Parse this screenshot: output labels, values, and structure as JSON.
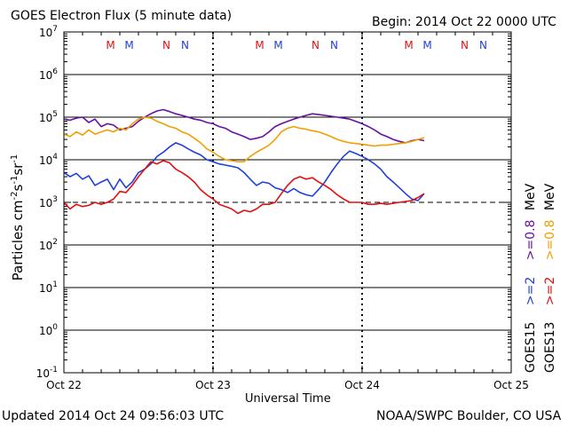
{
  "header": {
    "title": "GOES Electron Flux (5 minute data)",
    "begin": "Begin: 2014 Oct 22 0000 UTC"
  },
  "footer": {
    "updated": "Updated 2014 Oct 24 09:56:03 UTC",
    "credit": "NOAA/SWPC Boulder, CO USA"
  },
  "colors": {
    "goes15_2mev": "#1f3fdc",
    "goes13_2mev": "#e01010",
    "goes15_08mev": "#6a10a0",
    "goes13_08mev": "#f0a000",
    "marker_m": "#e01010",
    "marker_n": "#1f3fdc"
  },
  "chart_data": {
    "type": "line",
    "title": "GOES Electron Flux (5 minute data)",
    "xlabel": "Universal Time",
    "ylabel": "Particles cm-2s-1sr-1",
    "x_ticks": [
      "Oct 22",
      "Oct 23",
      "Oct 24",
      "Oct 25"
    ],
    "xlim_hours": [
      0,
      72
    ],
    "ylim_log10": [
      -1,
      7
    ],
    "y_ticks": [
      "10^-1",
      "10^0",
      "10^1",
      "10^2",
      "10^3",
      "10^4",
      "10^5",
      "10^6",
      "10^7"
    ],
    "threshold": 1000,
    "grid": true,
    "markers": [
      {
        "label": "M",
        "hour": 7.5,
        "color": "red"
      },
      {
        "label": "M",
        "hour": 10.5,
        "color": "blue"
      },
      {
        "label": "N",
        "hour": 16.5,
        "color": "red"
      },
      {
        "label": "N",
        "hour": 19.5,
        "color": "blue"
      },
      {
        "label": "M",
        "hour": 31.5,
        "color": "red"
      },
      {
        "label": "M",
        "hour": 34.5,
        "color": "blue"
      },
      {
        "label": "N",
        "hour": 40.5,
        "color": "red"
      },
      {
        "label": "N",
        "hour": 43.5,
        "color": "blue"
      },
      {
        "label": "M",
        "hour": 55.5,
        "color": "red"
      },
      {
        "label": "M",
        "hour": 58.5,
        "color": "blue"
      },
      {
        "label": "N",
        "hour": 64.5,
        "color": "red"
      },
      {
        "label": "N",
        "hour": 67.5,
        "color": "blue"
      }
    ],
    "series": [
      {
        "name": "GOES15 >=2 MeV",
        "color": "blue",
        "x": [
          0,
          1,
          2,
          3,
          4,
          5,
          6,
          7,
          8,
          9,
          10,
          11,
          12,
          13,
          14,
          15,
          16,
          17,
          18,
          19,
          20,
          21,
          22,
          23,
          24,
          25,
          26,
          27,
          28,
          29,
          30,
          31,
          32,
          33,
          34,
          35,
          36,
          37,
          38,
          39,
          40,
          41,
          42,
          43,
          44,
          45,
          46,
          47,
          48,
          49,
          50,
          51,
          52,
          53,
          54,
          55,
          56,
          57,
          58
        ],
        "values": [
          5000,
          4000,
          4800,
          3500,
          4200,
          2500,
          3000,
          3500,
          2000,
          3500,
          2200,
          3000,
          5000,
          6000,
          8000,
          12000,
          15000,
          20000,
          25000,
          22000,
          18000,
          15000,
          13000,
          10000,
          9000,
          8000,
          7500,
          7000,
          6500,
          5000,
          3500,
          2500,
          3000,
          2800,
          2200,
          2000,
          1700,
          2100,
          1700,
          1500,
          1400,
          2000,
          3000,
          5000,
          8000,
          12000,
          16000,
          14000,
          12000,
          10000,
          8000,
          6000,
          4000,
          3000,
          2200,
          1600,
          1200,
          1100,
          1600
        ]
      },
      {
        "name": "GOES13 >=2 MeV",
        "color": "red",
        "x": [
          0,
          1,
          2,
          3,
          4,
          5,
          6,
          7,
          8,
          9,
          10,
          11,
          12,
          13,
          14,
          15,
          16,
          17,
          18,
          19,
          20,
          21,
          22,
          23,
          24,
          25,
          26,
          27,
          28,
          29,
          30,
          31,
          32,
          33,
          34,
          35,
          36,
          37,
          38,
          39,
          40,
          41,
          42,
          43,
          44,
          45,
          46,
          47,
          48,
          49,
          50,
          51,
          52,
          53,
          54,
          55,
          56,
          57,
          58
        ],
        "values": [
          1000,
          700,
          900,
          800,
          850,
          1000,
          900,
          1000,
          1200,
          1800,
          1700,
          2500,
          4000,
          6000,
          9000,
          8000,
          9500,
          8500,
          6000,
          5000,
          4000,
          3000,
          2000,
          1500,
          1200,
          900,
          800,
          700,
          550,
          650,
          600,
          700,
          900,
          900,
          1000,
          1600,
          2500,
          3500,
          4000,
          3500,
          3800,
          3000,
          2500,
          2000,
          1500,
          1200,
          1000,
          1000,
          1000,
          900,
          900,
          950,
          900,
          950,
          1000,
          1050,
          1100,
          1300,
          1600
        ]
      },
      {
        "name": "GOES15 >=0.8 MeV",
        "color": "purple",
        "x": [
          0,
          1,
          2,
          3,
          4,
          5,
          6,
          7,
          8,
          9,
          10,
          11,
          12,
          13,
          14,
          15,
          16,
          17,
          18,
          19,
          20,
          21,
          22,
          23,
          24,
          25,
          26,
          27,
          28,
          29,
          30,
          31,
          32,
          33,
          34,
          35,
          36,
          37,
          38,
          39,
          40,
          41,
          42,
          43,
          44,
          45,
          46,
          47,
          48,
          49,
          50,
          51,
          52,
          53,
          54,
          55,
          56,
          57,
          58
        ],
        "values": [
          90000,
          85000,
          95000,
          100000,
          75000,
          90000,
          60000,
          70000,
          65000,
          50000,
          55000,
          60000,
          80000,
          100000,
          120000,
          140000,
          150000,
          135000,
          120000,
          110000,
          100000,
          90000,
          85000,
          75000,
          70000,
          60000,
          55000,
          45000,
          40000,
          35000,
          30000,
          32000,
          35000,
          45000,
          60000,
          70000,
          80000,
          90000,
          100000,
          110000,
          120000,
          115000,
          110000,
          105000,
          100000,
          95000,
          90000,
          80000,
          70000,
          60000,
          50000,
          40000,
          35000,
          30000,
          27000,
          25000,
          28000,
          30000,
          28000
        ]
      },
      {
        "name": "GOES13 >=0.8 MeV",
        "color": "orange",
        "x": [
          0,
          1,
          2,
          3,
          4,
          5,
          6,
          7,
          8,
          9,
          10,
          11,
          12,
          13,
          14,
          15,
          16,
          17,
          18,
          19,
          20,
          21,
          22,
          23,
          24,
          25,
          26,
          27,
          28,
          29,
          30,
          31,
          32,
          33,
          34,
          35,
          36,
          37,
          38,
          39,
          40,
          41,
          42,
          43,
          44,
          45,
          46,
          47,
          48,
          49,
          50,
          51,
          52,
          53,
          54,
          55,
          56,
          57,
          58
        ],
        "values": [
          40000,
          35000,
          45000,
          38000,
          50000,
          40000,
          45000,
          50000,
          45000,
          55000,
          50000,
          70000,
          90000,
          100000,
          95000,
          80000,
          70000,
          60000,
          55000,
          45000,
          40000,
          32000,
          25000,
          18000,
          15000,
          12000,
          10000,
          9500,
          9000,
          9000,
          12000,
          15000,
          18000,
          22000,
          30000,
          45000,
          55000,
          60000,
          55000,
          52000,
          48000,
          45000,
          40000,
          35000,
          30000,
          27000,
          25000,
          24000,
          23000,
          22000,
          21000,
          22000,
          22000,
          23000,
          24000,
          25000,
          27000,
          30000,
          33000
        ]
      }
    ]
  },
  "right_labels": {
    "goes15": "GOES15",
    "goes13": "GOES13",
    "ge2": ">=2",
    "ge08": ">=0.8",
    "mev": "MeV"
  }
}
